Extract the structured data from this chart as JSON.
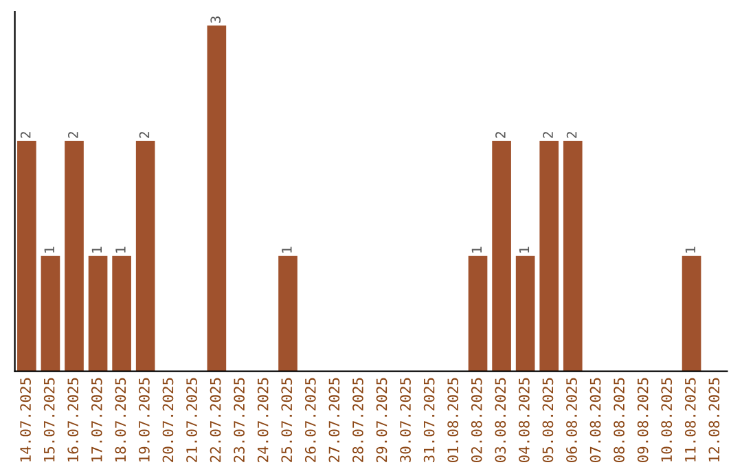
{
  "chart_data": {
    "type": "bar",
    "categories": [
      "14.07.2025",
      "15.07.2025",
      "16.07.2025",
      "17.07.2025",
      "18.07.2025",
      "19.07.2025",
      "20.07.2025",
      "21.07.2025",
      "22.07.2025",
      "23.07.2025",
      "24.07.2025",
      "25.07.2025",
      "26.07.2025",
      "27.07.2025",
      "28.07.2025",
      "29.07.2025",
      "30.07.2025",
      "31.07.2025",
      "01.08.2025",
      "02.08.2025",
      "03.08.2025",
      "04.08.2025",
      "05.08.2025",
      "06.08.2025",
      "07.08.2025",
      "08.08.2025",
      "09.08.2025",
      "10.08.2025",
      "11.08.2025",
      "12.08.2025"
    ],
    "values": [
      2,
      1,
      2,
      1,
      1,
      2,
      0,
      0,
      3,
      0,
      0,
      1,
      0,
      0,
      0,
      0,
      0,
      0,
      0,
      1,
      2,
      1,
      2,
      2,
      0,
      0,
      0,
      0,
      1,
      0
    ],
    "value_labels": [
      "2",
      "1",
      "2",
      "1",
      "1",
      "2",
      null,
      null,
      "3",
      null,
      null,
      "1",
      null,
      null,
      null,
      null,
      null,
      null,
      null,
      "1",
      "2",
      "1",
      "2",
      "2",
      null,
      null,
      null,
      null,
      "1",
      null
    ],
    "color": "#a0522d",
    "tick_labels": "x",
    "grid": false,
    "legend": false
  }
}
